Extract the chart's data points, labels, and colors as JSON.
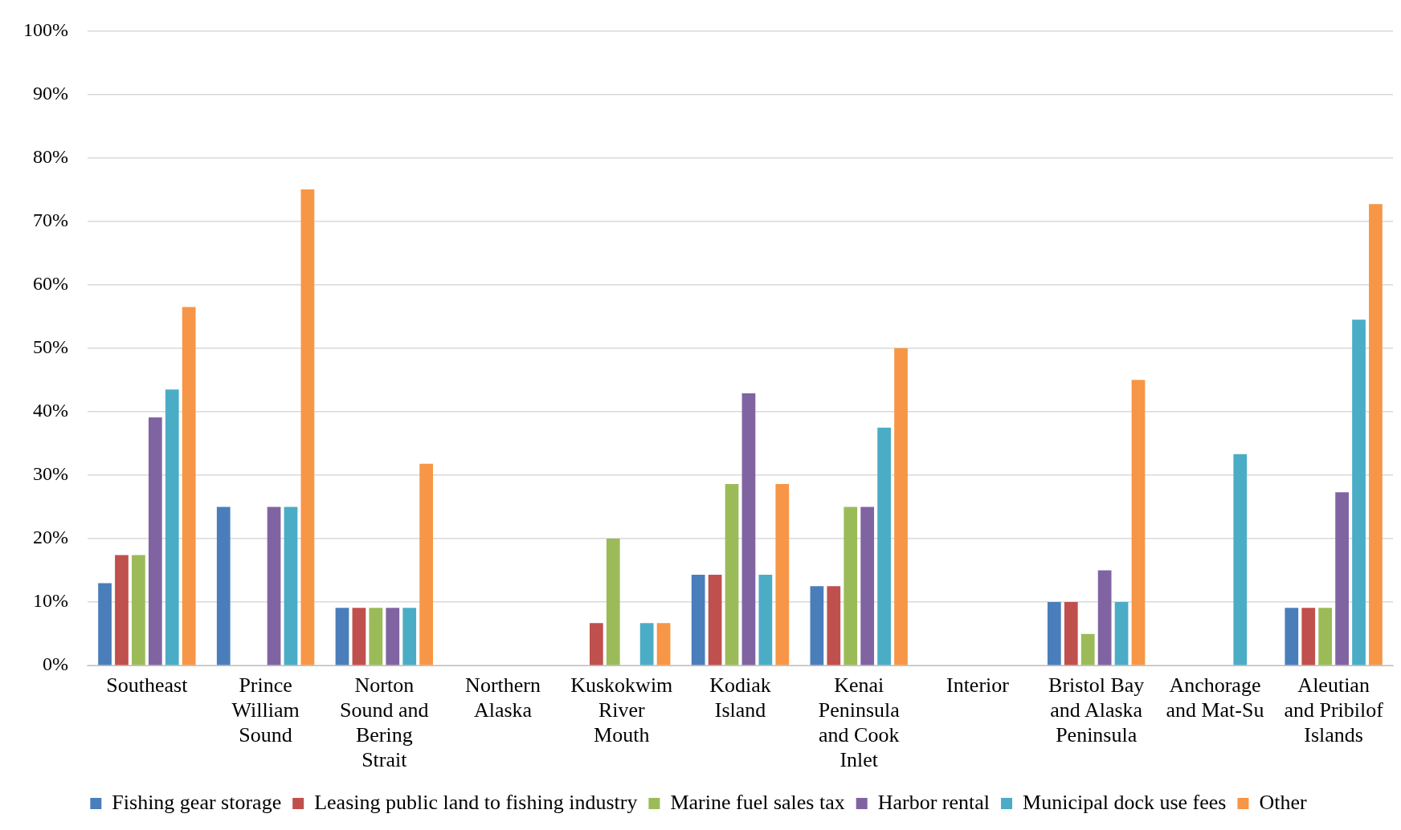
{
  "chart_data": {
    "type": "bar",
    "categories": [
      "Southeast",
      "Prince William Sound",
      "Norton Sound and Bering Strait",
      "Northern Alaska",
      "Kuskokwim River Mouth",
      "Kodiak Island",
      "Kenai Peninsula and Cook Inlet",
      "Interior",
      "Bristol Bay and Alaska Peninsula",
      "Anchorage and Mat-Su",
      "Aleutian and Pribilof Islands"
    ],
    "series": [
      {
        "name": "Fishing gear storage",
        "color": "#4a7ebb",
        "values": [
          13,
          25,
          9.1,
          0,
          0,
          14.3,
          12.5,
          0,
          10,
          0,
          9.1
        ]
      },
      {
        "name": "Leasing public land to fishing industry",
        "color": "#c0504d",
        "values": [
          17.4,
          0,
          9.1,
          0,
          6.7,
          14.3,
          12.5,
          0,
          10,
          0,
          9.1
        ]
      },
      {
        "name": "Marine fuel sales tax",
        "color": "#9bbb59",
        "values": [
          17.4,
          0,
          9.1,
          0,
          20,
          28.6,
          25,
          0,
          5,
          0,
          9.1
        ]
      },
      {
        "name": "Harbor rental",
        "color": "#8064a2",
        "values": [
          39.1,
          25,
          9.1,
          0,
          0,
          42.9,
          25,
          0,
          15,
          0,
          27.3
        ]
      },
      {
        "name": "Municipal dock use fees",
        "color": "#4bacc6",
        "values": [
          43.5,
          25,
          9.1,
          0,
          6.7,
          14.3,
          37.5,
          0,
          10,
          33.3,
          54.5
        ]
      },
      {
        "name": "Other",
        "color": "#f79646",
        "values": [
          56.5,
          75,
          31.8,
          0,
          6.7,
          28.6,
          50,
          0,
          45,
          0,
          72.7
        ]
      }
    ],
    "ylim": [
      0,
      100
    ],
    "yticks": [
      {
        "value": 0,
        "label": "0%"
      },
      {
        "value": 10,
        "label": "10%"
      },
      {
        "value": 20,
        "label": "20%"
      },
      {
        "value": 30,
        "label": "30%"
      },
      {
        "value": 40,
        "label": "40%"
      },
      {
        "value": 50,
        "label": "50%"
      },
      {
        "value": 60,
        "label": "60%"
      },
      {
        "value": 70,
        "label": "70%"
      },
      {
        "value": 80,
        "label": "80%"
      },
      {
        "value": 90,
        "label": "90%"
      },
      {
        "value": 100,
        "label": "100%"
      }
    ],
    "grid": "y",
    "legend": "bottom"
  }
}
